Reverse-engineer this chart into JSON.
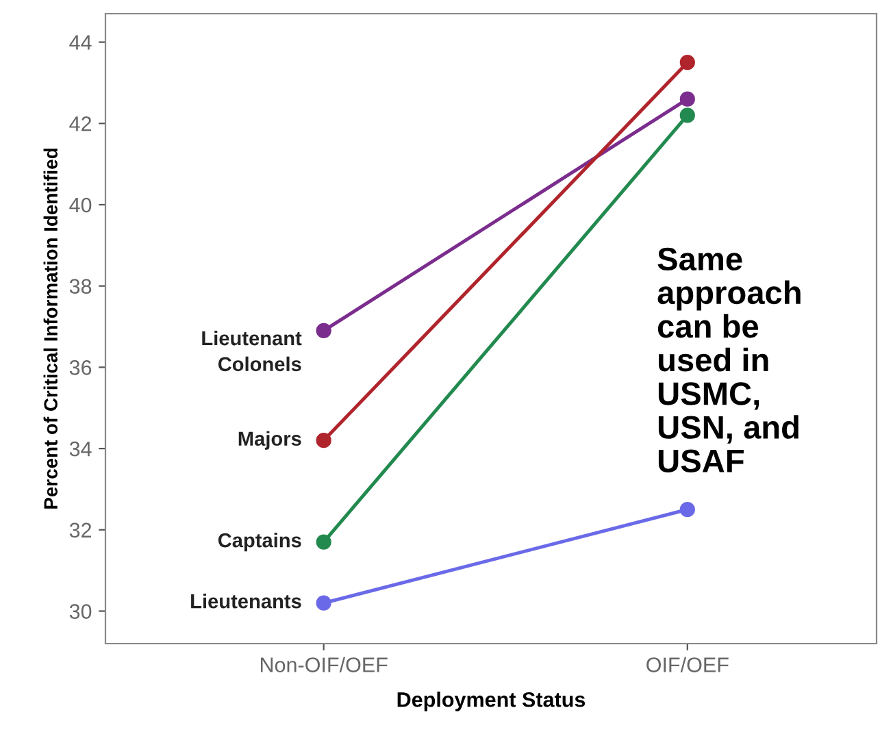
{
  "chart_data": {
    "type": "line",
    "xlabel": "Deployment Status",
    "ylabel": "Percent of Critical Information Identified",
    "categories": [
      "Non-OIF/OEF",
      "OIF/OEF"
    ],
    "series": [
      {
        "name": "Lieutenant\nColonels",
        "color": "#7b2d8e",
        "values": [
          36.9,
          42.6
        ]
      },
      {
        "name": "Majors",
        "color": "#b0242c",
        "values": [
          34.2,
          43.5
        ]
      },
      {
        "name": "Captains",
        "color": "#238a4f",
        "values": [
          31.7,
          42.2
        ]
      },
      {
        "name": "Lieutenants",
        "color": "#6a6ae8",
        "values": [
          30.2,
          32.5
        ]
      }
    ],
    "ylim": [
      29.2,
      44.7
    ],
    "yticks": [
      30,
      32,
      34,
      36,
      38,
      40,
      42,
      44
    ],
    "marker": "circle",
    "line_style": "solid",
    "grid": false,
    "legend": false,
    "annotations": [
      "Same\napproach\ncan be\nused in\nUSMC,\nUSN, and\nUSAF"
    ]
  }
}
